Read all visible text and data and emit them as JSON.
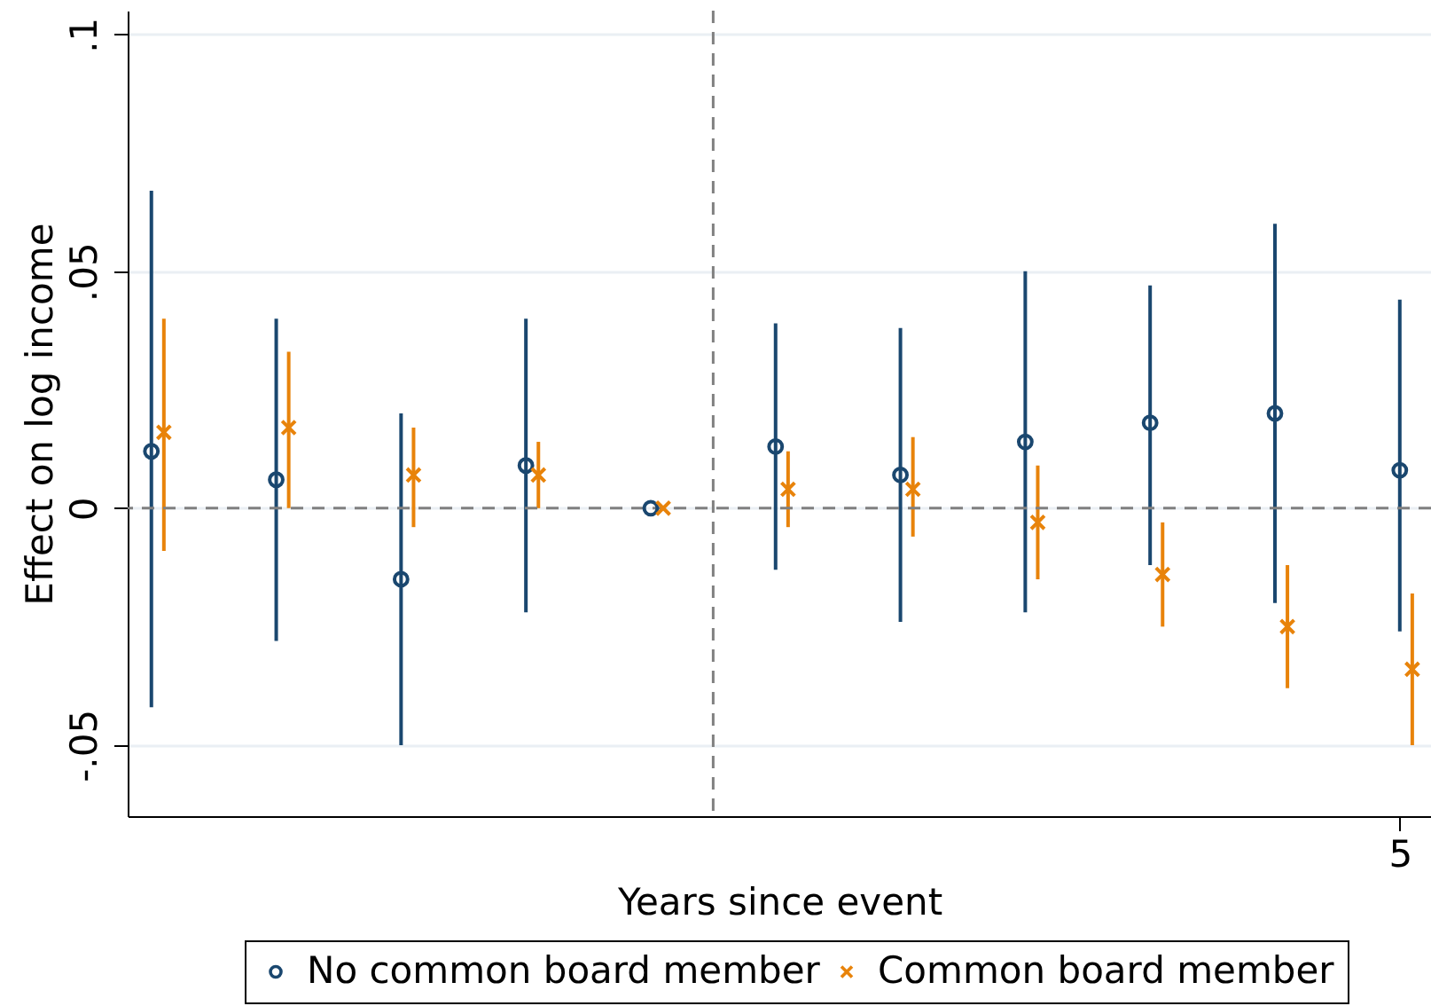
{
  "chart_data": {
    "type": "scatter",
    "xlabel": "Years since event",
    "ylabel": "Effect on log income",
    "categories": [
      null,
      null,
      null,
      null,
      null,
      null,
      null,
      null,
      null,
      null,
      "5"
    ],
    "ylim": [
      -0.065,
      0.105
    ],
    "yticks": [
      {
        "value": -0.05,
        "label": "-.05"
      },
      0,
      {
        "value": 0.05,
        "label": ".05"
      },
      {
        "value": 0.1,
        "label": ".1"
      }
    ],
    "grid": "y",
    "legend": "bottom",
    "series": [
      {
        "name": "No common board member",
        "color": "#1a476f",
        "marker": "circle",
        "values": [
          0.012,
          0.006,
          -0.015,
          0.009,
          0,
          0.013,
          0.007,
          0.014,
          0.018,
          0.02,
          0.008
        ],
        "errors": [
          [
            -0.042,
            0.067
          ],
          [
            -0.028,
            0.04
          ],
          [
            -0.05,
            0.02
          ],
          [
            -0.022,
            0.04
          ],
          null,
          [
            -0.013,
            0.039
          ],
          [
            -0.024,
            0.038
          ],
          [
            -0.022,
            0.05
          ],
          [
            -0.012,
            0.047
          ],
          [
            -0.02,
            0.06
          ],
          [
            -0.026,
            0.044
          ]
        ]
      },
      {
        "name": "Common board member",
        "color": "#e8830a",
        "marker": "cross",
        "values": [
          0.016,
          0.017,
          0.007,
          0.007,
          0,
          0.004,
          0.004,
          -0.003,
          -0.014,
          -0.025,
          -0.034
        ],
        "errors": [
          [
            -0.009,
            0.04
          ],
          [
            0,
            0.033
          ],
          [
            -0.004,
            0.017
          ],
          [
            0,
            0.014
          ],
          null,
          [
            -0.004,
            0.012
          ],
          [
            -0.006,
            0.015
          ],
          [
            -0.015,
            0.009
          ],
          [
            -0.025,
            -0.003
          ],
          [
            -0.038,
            -0.012
          ],
          [
            -0.05,
            -0.018
          ]
        ]
      }
    ],
    "ref_lines": [
      {
        "axis": "y",
        "value": 0,
        "color": "#808080",
        "line_style": "dashed"
      }
    ]
  }
}
